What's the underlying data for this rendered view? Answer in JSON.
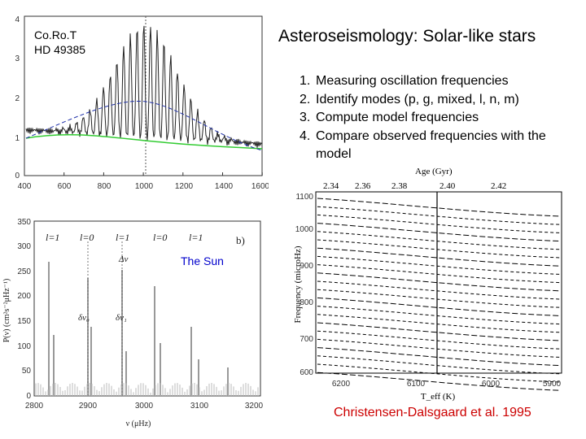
{
  "title": "Asteroseismology: Solar-like stars",
  "steps": [
    {
      "num": "1.",
      "text": "Measuring oscillation frequencies"
    },
    {
      "num": "2.",
      "text": "Identify modes (p, g, mixed, l, n, m)"
    },
    {
      "num": "3.",
      "text": "Compute model frequencies"
    },
    {
      "num": "4.",
      "text": "Compare observed frequencies with the model"
    }
  ],
  "credit": "Christensen-Dalsgaard et al. 1995",
  "colors": {
    "credit": "#cc0000",
    "sun_label": "#0000cc",
    "fit_line": "#33cc33",
    "envelope": "#2233aa"
  },
  "corot": {
    "star_line1": "Co.Ro.T",
    "star_line2": "HD 49385",
    "xticks": [
      "400",
      "600",
      "800",
      "1000",
      "1200",
      "1400",
      "1600"
    ],
    "yticks": [
      "0",
      "1",
      "2",
      "3",
      "4"
    ]
  },
  "sun": {
    "label": "The Sun",
    "panel": "b)",
    "delta_nu": "Δν",
    "delta_nu0": "δν₀",
    "delta_nu1": "δν₁",
    "degrees": [
      "l=1",
      "l=0",
      "l=1",
      "l=0",
      "l=1"
    ],
    "xticks": [
      "2800",
      "2900",
      "3000",
      "3100",
      "3200"
    ],
    "yticks": [
      "0",
      "50",
      "100",
      "150",
      "200",
      "250",
      "300",
      "350"
    ],
    "ylabel": "P(ν) (cm²s⁻²μHz⁻¹)",
    "xlabel": "ν (μHz)"
  },
  "model": {
    "top_label": "Age (Gyr)",
    "ages": [
      "2.34",
      "2.36",
      "2.38",
      "2.40",
      "2.42"
    ],
    "yticks": [
      "1100",
      "1000",
      "900",
      "800",
      "700",
      "600"
    ],
    "xticks": [
      "6200",
      "6100",
      "6000",
      "5900"
    ],
    "ylabel": "Frequency (microHz)",
    "xlabel": "T_eff (K)"
  }
}
